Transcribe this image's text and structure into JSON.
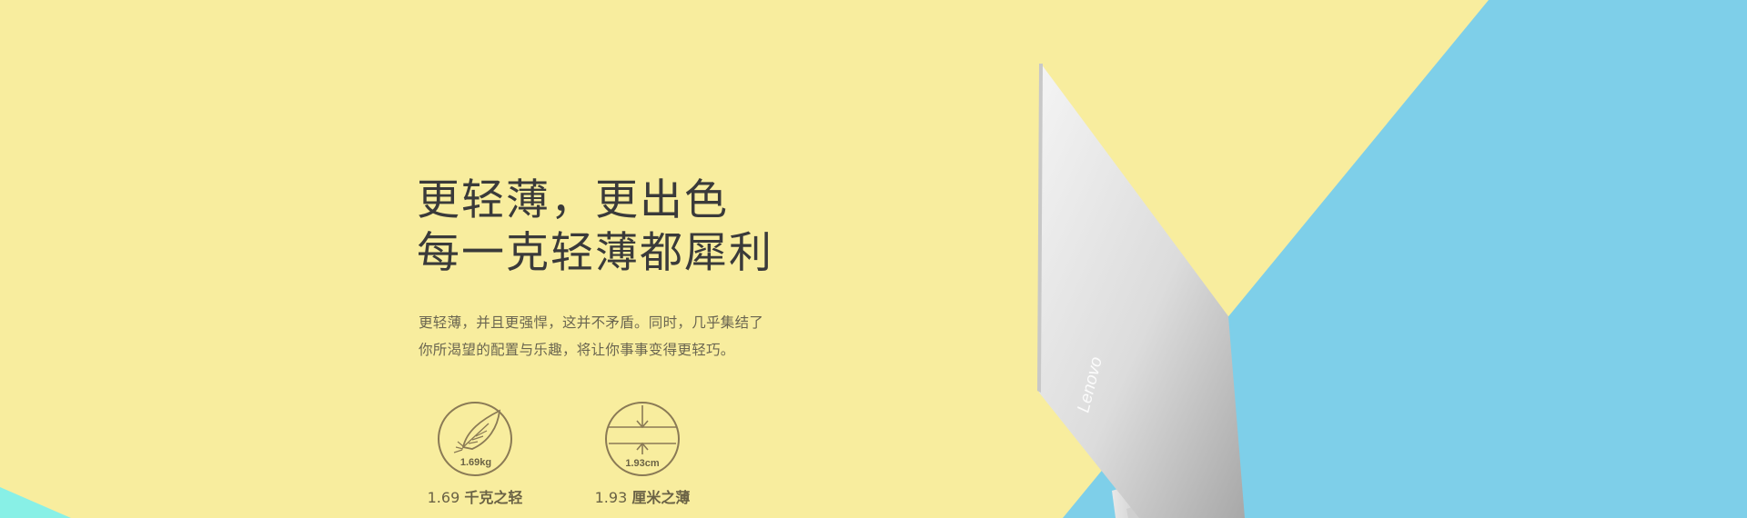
{
  "hero": {
    "headline_line1": "更轻薄，更出色",
    "headline_line2": "每一克轻薄都犀利",
    "desc_line1": "更轻薄，并且更强悍，这并不矛盾。同时，几乎集结了",
    "desc_line2": "你所渴望的配置与乐趣，将让你事事变得更轻巧。"
  },
  "features": {
    "weight": {
      "icon": "feather-icon",
      "badge_text": "1.69kg",
      "value": "1.69",
      "label": "千克之轻"
    },
    "thickness": {
      "icon": "thickness-icon",
      "badge_text": "1.93cm",
      "value": "1.93",
      "label": "厘米之薄"
    }
  },
  "product": {
    "brand_logo_text": "Lenovo"
  },
  "colors": {
    "background_yellow": "#f8ed9e",
    "accent_blue": "#7ecfe9",
    "corner_cyan": "#88f0e6",
    "laptop_silver": "#d9d9d9",
    "icon_stroke": "#8a7a55"
  }
}
